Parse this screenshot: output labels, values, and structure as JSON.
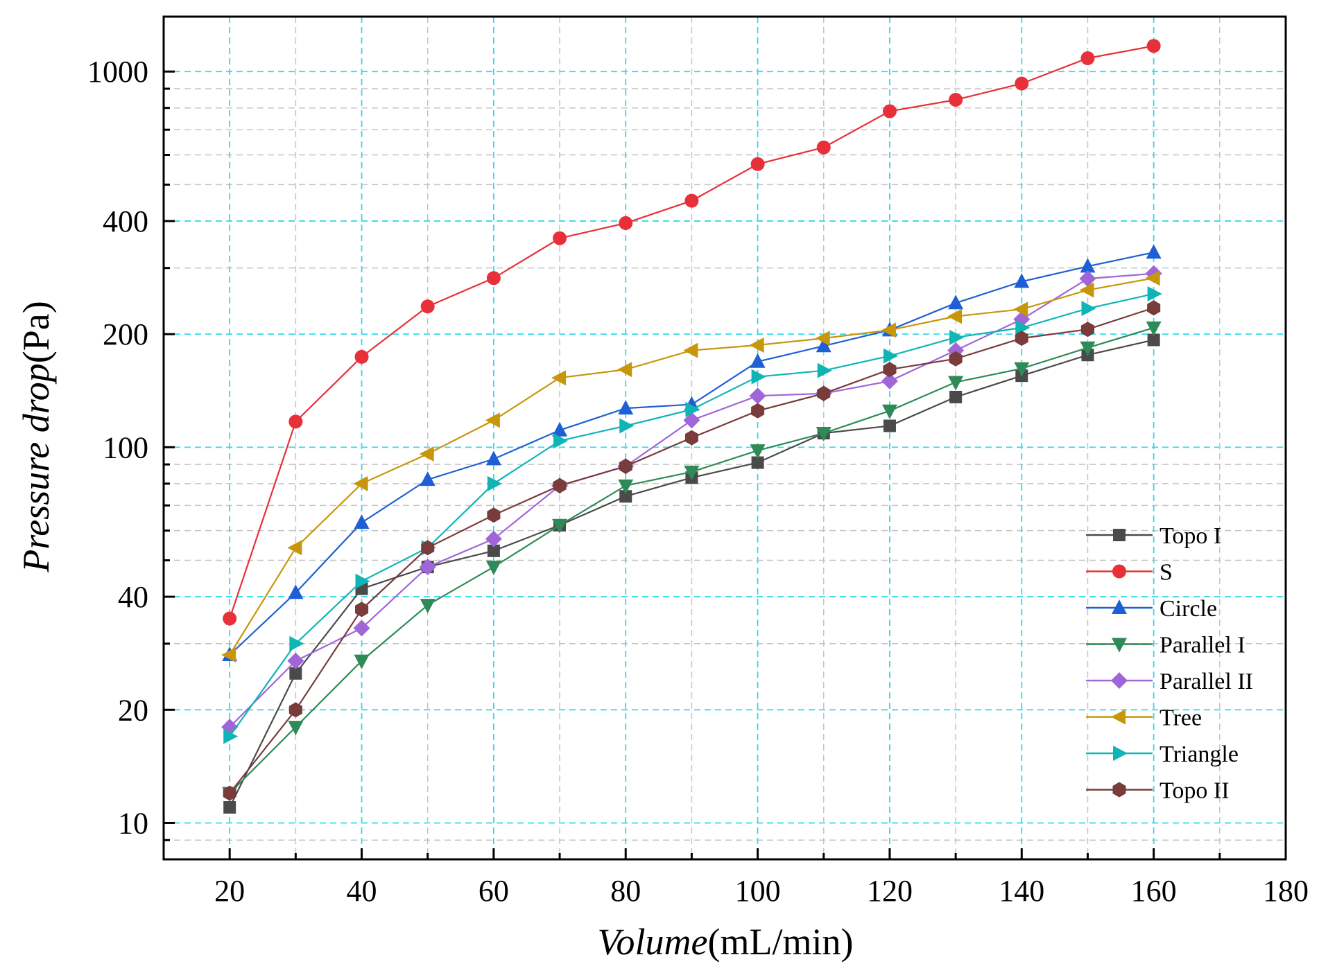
{
  "chart_data": {
    "type": "line",
    "title": "",
    "xlabel": {
      "italic": "Volume",
      "normal": "(mL/min)"
    },
    "ylabel": {
      "normal_prefix": "Pressure ",
      "italic": "drop",
      "normal": "(Pa)"
    },
    "xlim": [
      10,
      180
    ],
    "ylim": [
      8,
      1400
    ],
    "yscale": "log",
    "x_ticks": [
      20,
      40,
      60,
      80,
      100,
      120,
      140,
      160,
      180
    ],
    "y_ticks": [
      10,
      20,
      40,
      100,
      200,
      400,
      1000
    ],
    "grid": true,
    "legend_position": "lower-right",
    "x": [
      20,
      30,
      40,
      50,
      60,
      70,
      80,
      90,
      100,
      110,
      120,
      130,
      140,
      150,
      160
    ],
    "series": [
      {
        "name": "Topo I",
        "marker": "square",
        "color": "#4a4a4a",
        "values": [
          11,
          25,
          42,
          48,
          53,
          62,
          74,
          83,
          91,
          109,
          114,
          136,
          155,
          176,
          193
        ]
      },
      {
        "name": "S",
        "marker": "circle",
        "color": "#e8303a",
        "values": [
          35,
          117,
          174,
          237,
          282,
          360,
          395,
          453,
          567,
          628,
          784,
          841,
          929,
          1085,
          1170
        ]
      },
      {
        "name": "Circle",
        "marker": "triangle-up",
        "color": "#1f5fd6",
        "values": [
          28,
          41,
          63,
          82,
          93,
          111,
          127,
          130,
          169,
          186,
          205,
          242,
          276,
          303,
          330
        ]
      },
      {
        "name": "Parallel I",
        "marker": "triangle-down",
        "color": "#2e8b57",
        "values": [
          12,
          18,
          27,
          38,
          48,
          62,
          79,
          86,
          98,
          109,
          125,
          149,
          162,
          184,
          208
        ]
      },
      {
        "name": "Parallel II",
        "marker": "diamond",
        "color": "#a066d8",
        "values": [
          18,
          27,
          33,
          48,
          57,
          79,
          89,
          118,
          137,
          139,
          150,
          181,
          219,
          281,
          290
        ]
      },
      {
        "name": "Tree",
        "marker": "triangle-left",
        "color": "#c8960a",
        "values": [
          28,
          54,
          80,
          96,
          118,
          153,
          161,
          181,
          187,
          195,
          205,
          223,
          233,
          262,
          282
        ]
      },
      {
        "name": "Triangle",
        "marker": "triangle-right",
        "color": "#0fb5b5",
        "values": [
          17,
          30,
          44,
          54,
          80,
          104,
          114,
          126,
          154,
          160,
          175,
          196,
          208,
          234,
          256
        ]
      },
      {
        "name": "Topo II",
        "marker": "hexagon",
        "color": "#7a3b3b",
        "values": [
          12,
          20,
          37,
          54,
          66,
          79,
          89,
          106,
          125,
          139,
          161,
          172,
          195,
          206,
          235
        ]
      }
    ],
    "colors": {
      "major_grid": "#33d9e8",
      "minor_grid": "#c4c4c4",
      "axis": "#000000"
    }
  }
}
